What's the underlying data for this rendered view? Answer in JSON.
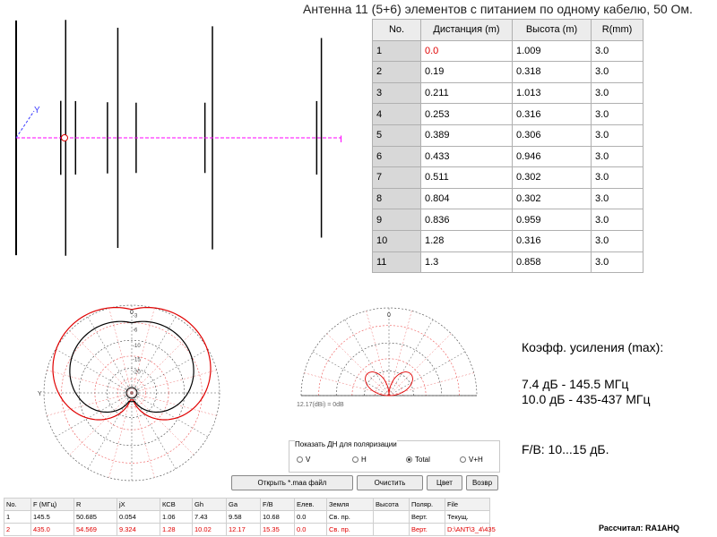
{
  "title": "Антенна 11 (5+6) элементов с питанием по одному кабелю, 50 Ом.",
  "antenna_view": {
    "axis_label": "Y",
    "end_label": "I"
  },
  "element_table": {
    "headers": [
      "No.",
      "Дистанция (m)",
      "Высота (m)",
      "R(mm)"
    ],
    "rows": [
      [
        "1",
        "0.0",
        "1.009",
        "3.0"
      ],
      [
        "2",
        "0.19",
        "0.318",
        "3.0"
      ],
      [
        "3",
        "0.211",
        "1.013",
        "3.0"
      ],
      [
        "4",
        "0.253",
        "0.316",
        "3.0"
      ],
      [
        "5",
        "0.389",
        "0.306",
        "3.0"
      ],
      [
        "6",
        "0.433",
        "0.946",
        "3.0"
      ],
      [
        "7",
        "0.511",
        "0.302",
        "3.0"
      ],
      [
        "8",
        "0.804",
        "0.302",
        "3.0"
      ],
      [
        "9",
        "0.836",
        "0.959",
        "3.0"
      ],
      [
        "10",
        "1.28",
        "0.316",
        "3.0"
      ],
      [
        "11",
        "1.3",
        "0.858",
        "3.0"
      ]
    ]
  },
  "polar_plot": {
    "top_label": "0",
    "ring_labels": [
      "-3",
      "-6",
      "-10",
      "-15",
      "-20"
    ],
    "caption": "12.17(dBi) = 0dB"
  },
  "gain_info": {
    "heading": "Коэфф. усиления (max):",
    "line1": "7.4 дБ - 145.5 МГц",
    "line2": "10.0 дБ - 435-437 МГц",
    "fb": "F/B: 10...15 дБ."
  },
  "polarization": {
    "label": "Показать ДН для поляризации",
    "options": [
      "V",
      "H",
      "Total",
      "V+H"
    ],
    "selected": "Total"
  },
  "buttons": {
    "open": "Открыть *.maa файл",
    "clear": "Очистить",
    "color": "Цвет",
    "more": "Возвр"
  },
  "results_table": {
    "headers": [
      "No.",
      "F (МГц)",
      "R",
      "jX",
      "КСВ",
      "Gh",
      "Ga",
      "F/B",
      "Елев.",
      "Земля",
      "Высота",
      "Поляр.",
      "File"
    ],
    "rows": [
      [
        "1",
        "145.5",
        "50.685",
        "0.054",
        "1.06",
        "7.43",
        "9.58",
        "10.68",
        "0.0",
        "Св. пр.",
        "",
        "Верт.",
        "Текущ."
      ],
      [
        "2",
        "435.0",
        "54.569",
        "9.324",
        "1.28",
        "10.02",
        "12.17",
        "15.35",
        "0.0",
        "Св. пр.",
        "",
        "Верт.",
        "D:\\ANT\\3_4\\435"
      ]
    ]
  },
  "credit": "Рассчитал: RA1AHQ",
  "colors": {
    "series1": "#000000",
    "series2": "#e00000",
    "feed_line": "#ff00ff",
    "axis_blue": "#3b3bff"
  }
}
